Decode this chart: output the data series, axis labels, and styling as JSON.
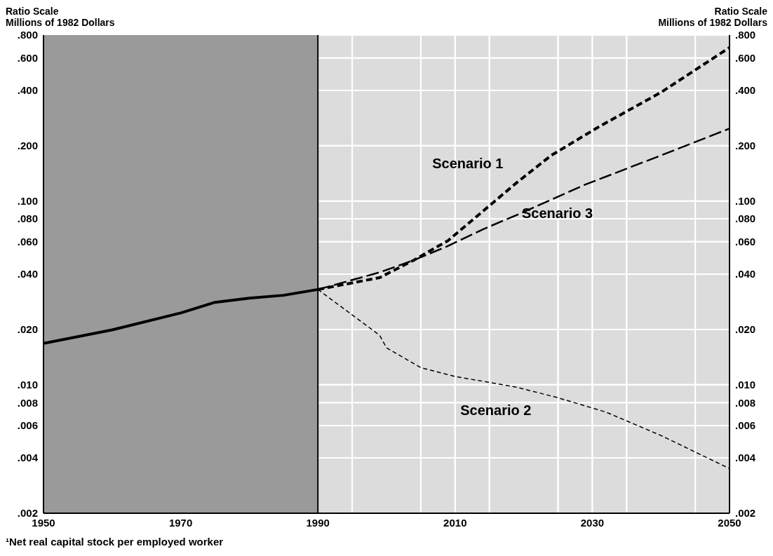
{
  "chart_data": {
    "type": "line",
    "ylabel": "Ratio Scale\nMillions of 1982 Dollars",
    "y2label": "Ratio Scale\nMillions of 1982 Dollars",
    "annotations": [
      "¹Net real capital stock per employed worker"
    ],
    "xlim": [
      1950,
      2050
    ],
    "xticks": [
      1950,
      {
        "value": 1955,
        "label": null
      },
      {
        "value": 1965,
        "label": null
      },
      1970,
      {
        "value": 1975,
        "label": null
      },
      {
        "value": 1985,
        "label": null
      },
      1990,
      {
        "value": 1995,
        "label": null
      },
      {
        "value": 2005,
        "label": null
      },
      2010,
      {
        "value": 2015,
        "label": null
      },
      {
        "value": 2025,
        "label": null
      },
      2030,
      {
        "value": 2035,
        "label": null
      },
      {
        "value": 2045,
        "label": null
      },
      2050
    ],
    "ylim": [
      0.002,
      0.8
    ],
    "yticks": [
      {
        "value": 0.002,
        "label": ".002"
      },
      {
        "value": 0.004,
        "label": ".004"
      },
      {
        "value": 0.006,
        "label": ".006"
      },
      {
        "value": 0.008,
        "label": ".008"
      },
      {
        "value": 0.01,
        "label": ".010"
      },
      {
        "value": 0.02,
        "label": ".020"
      },
      {
        "value": 0.04,
        "label": ".040"
      },
      {
        "value": 0.06,
        "label": ".060"
      },
      {
        "value": 0.08,
        "label": ".080"
      },
      {
        "value": 0.1,
        "label": ".100"
      },
      {
        "value": 0.2,
        "label": ".200"
      },
      {
        "value": 0.4,
        "label": ".400"
      },
      {
        "value": 0.6,
        "label": ".600"
      },
      {
        "value": 0.8,
        "label": ".800"
      }
    ],
    "log": true,
    "grid": true,
    "marker": "none",
    "bands": [
      {
        "axis": "x",
        "from": 1950,
        "to": 1990,
        "color": "#9a9a9a"
      }
    ],
    "ref_lines": [
      {
        "axis": "x",
        "value": 1990,
        "color": "#000000"
      }
    ],
    "series": [
      {
        "color": "#000000",
        "line_style": "solid",
        "x": [
          1950,
          1960,
          1970,
          1975,
          1980,
          1985,
          1990
        ],
        "values": [
          0.0168,
          0.0199,
          0.0246,
          0.0281,
          0.0296,
          0.0307,
          0.033
        ]
      },
      {
        "name": "Scenario 1",
        "color": "#000000",
        "line_style": "dashed",
        "x": [
          1990,
          1999,
          2004,
          2009,
          2014,
          2019,
          2024,
          2031,
          2040,
          2050
        ],
        "values": [
          0.033,
          0.0383,
          0.0477,
          0.061,
          0.0877,
          0.126,
          0.177,
          0.254,
          0.39,
          0.684
        ]
      },
      {
        "name": "Scenario 2",
        "color": "#000000",
        "line_style": "dashed",
        "x": [
          1990,
          1999,
          2000,
          2005,
          2010,
          2019,
          2025,
          2032,
          2040,
          2050
        ],
        "values": [
          0.033,
          0.0186,
          0.0159,
          0.0124,
          0.0111,
          0.0097,
          0.0085,
          0.0071,
          0.0053,
          0.0035
        ]
      },
      {
        "name": "Scenario 3",
        "color": "#000000",
        "line_style": "dashed",
        "x": [
          1990,
          1999,
          2004,
          2009,
          2014,
          2019,
          2029,
          2040,
          2050
        ],
        "values": [
          0.033,
          0.0409,
          0.0477,
          0.057,
          0.07,
          0.084,
          0.123,
          0.177,
          0.248
        ]
      }
    ]
  }
}
